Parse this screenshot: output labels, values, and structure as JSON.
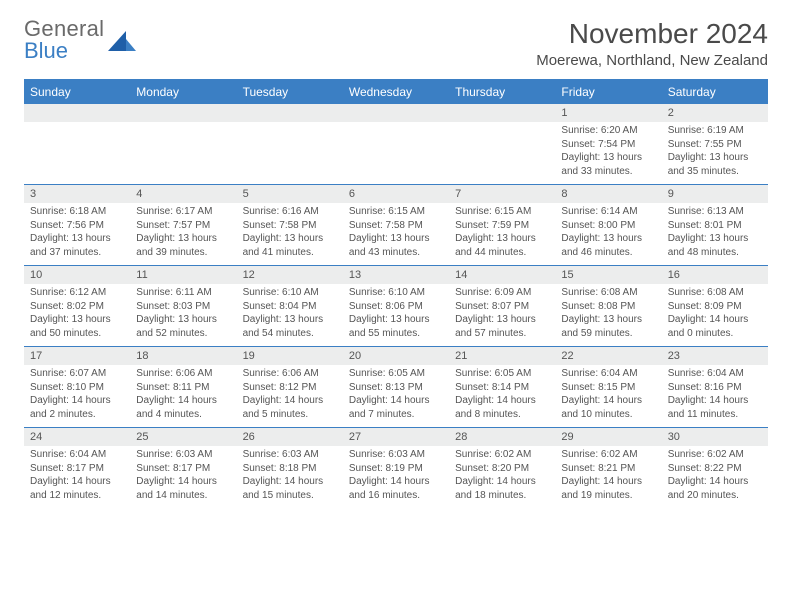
{
  "logo": {
    "top": "General",
    "bottom": "Blue"
  },
  "title": "November 2024",
  "location": "Moerewa, Northland, New Zealand",
  "colors": {
    "accent": "#3b7fc4",
    "header_bg": "#3b7fc4",
    "header_text": "#ffffff",
    "daynum_bg": "#eceded",
    "text": "#555555",
    "title_text": "#4a4a4a",
    "logo_gray": "#6a6a6a"
  },
  "day_headers": [
    "Sunday",
    "Monday",
    "Tuesday",
    "Wednesday",
    "Thursday",
    "Friday",
    "Saturday"
  ],
  "weeks": [
    {
      "nums": [
        "",
        "",
        "",
        "",
        "",
        "1",
        "2"
      ],
      "cells": [
        null,
        null,
        null,
        null,
        null,
        {
          "sr": "Sunrise: 6:20 AM",
          "ss": "Sunset: 7:54 PM",
          "d1": "Daylight: 13 hours",
          "d2": "and 33 minutes."
        },
        {
          "sr": "Sunrise: 6:19 AM",
          "ss": "Sunset: 7:55 PM",
          "d1": "Daylight: 13 hours",
          "d2": "and 35 minutes."
        }
      ]
    },
    {
      "nums": [
        "3",
        "4",
        "5",
        "6",
        "7",
        "8",
        "9"
      ],
      "cells": [
        {
          "sr": "Sunrise: 6:18 AM",
          "ss": "Sunset: 7:56 PM",
          "d1": "Daylight: 13 hours",
          "d2": "and 37 minutes."
        },
        {
          "sr": "Sunrise: 6:17 AM",
          "ss": "Sunset: 7:57 PM",
          "d1": "Daylight: 13 hours",
          "d2": "and 39 minutes."
        },
        {
          "sr": "Sunrise: 6:16 AM",
          "ss": "Sunset: 7:58 PM",
          "d1": "Daylight: 13 hours",
          "d2": "and 41 minutes."
        },
        {
          "sr": "Sunrise: 6:15 AM",
          "ss": "Sunset: 7:58 PM",
          "d1": "Daylight: 13 hours",
          "d2": "and 43 minutes."
        },
        {
          "sr": "Sunrise: 6:15 AM",
          "ss": "Sunset: 7:59 PM",
          "d1": "Daylight: 13 hours",
          "d2": "and 44 minutes."
        },
        {
          "sr": "Sunrise: 6:14 AM",
          "ss": "Sunset: 8:00 PM",
          "d1": "Daylight: 13 hours",
          "d2": "and 46 minutes."
        },
        {
          "sr": "Sunrise: 6:13 AM",
          "ss": "Sunset: 8:01 PM",
          "d1": "Daylight: 13 hours",
          "d2": "and 48 minutes."
        }
      ]
    },
    {
      "nums": [
        "10",
        "11",
        "12",
        "13",
        "14",
        "15",
        "16"
      ],
      "cells": [
        {
          "sr": "Sunrise: 6:12 AM",
          "ss": "Sunset: 8:02 PM",
          "d1": "Daylight: 13 hours",
          "d2": "and 50 minutes."
        },
        {
          "sr": "Sunrise: 6:11 AM",
          "ss": "Sunset: 8:03 PM",
          "d1": "Daylight: 13 hours",
          "d2": "and 52 minutes."
        },
        {
          "sr": "Sunrise: 6:10 AM",
          "ss": "Sunset: 8:04 PM",
          "d1": "Daylight: 13 hours",
          "d2": "and 54 minutes."
        },
        {
          "sr": "Sunrise: 6:10 AM",
          "ss": "Sunset: 8:06 PM",
          "d1": "Daylight: 13 hours",
          "d2": "and 55 minutes."
        },
        {
          "sr": "Sunrise: 6:09 AM",
          "ss": "Sunset: 8:07 PM",
          "d1": "Daylight: 13 hours",
          "d2": "and 57 minutes."
        },
        {
          "sr": "Sunrise: 6:08 AM",
          "ss": "Sunset: 8:08 PM",
          "d1": "Daylight: 13 hours",
          "d2": "and 59 minutes."
        },
        {
          "sr": "Sunrise: 6:08 AM",
          "ss": "Sunset: 8:09 PM",
          "d1": "Daylight: 14 hours",
          "d2": "and 0 minutes."
        }
      ]
    },
    {
      "nums": [
        "17",
        "18",
        "19",
        "20",
        "21",
        "22",
        "23"
      ],
      "cells": [
        {
          "sr": "Sunrise: 6:07 AM",
          "ss": "Sunset: 8:10 PM",
          "d1": "Daylight: 14 hours",
          "d2": "and 2 minutes."
        },
        {
          "sr": "Sunrise: 6:06 AM",
          "ss": "Sunset: 8:11 PM",
          "d1": "Daylight: 14 hours",
          "d2": "and 4 minutes."
        },
        {
          "sr": "Sunrise: 6:06 AM",
          "ss": "Sunset: 8:12 PM",
          "d1": "Daylight: 14 hours",
          "d2": "and 5 minutes."
        },
        {
          "sr": "Sunrise: 6:05 AM",
          "ss": "Sunset: 8:13 PM",
          "d1": "Daylight: 14 hours",
          "d2": "and 7 minutes."
        },
        {
          "sr": "Sunrise: 6:05 AM",
          "ss": "Sunset: 8:14 PM",
          "d1": "Daylight: 14 hours",
          "d2": "and 8 minutes."
        },
        {
          "sr": "Sunrise: 6:04 AM",
          "ss": "Sunset: 8:15 PM",
          "d1": "Daylight: 14 hours",
          "d2": "and 10 minutes."
        },
        {
          "sr": "Sunrise: 6:04 AM",
          "ss": "Sunset: 8:16 PM",
          "d1": "Daylight: 14 hours",
          "d2": "and 11 minutes."
        }
      ]
    },
    {
      "nums": [
        "24",
        "25",
        "26",
        "27",
        "28",
        "29",
        "30"
      ],
      "cells": [
        {
          "sr": "Sunrise: 6:04 AM",
          "ss": "Sunset: 8:17 PM",
          "d1": "Daylight: 14 hours",
          "d2": "and 12 minutes."
        },
        {
          "sr": "Sunrise: 6:03 AM",
          "ss": "Sunset: 8:17 PM",
          "d1": "Daylight: 14 hours",
          "d2": "and 14 minutes."
        },
        {
          "sr": "Sunrise: 6:03 AM",
          "ss": "Sunset: 8:18 PM",
          "d1": "Daylight: 14 hours",
          "d2": "and 15 minutes."
        },
        {
          "sr": "Sunrise: 6:03 AM",
          "ss": "Sunset: 8:19 PM",
          "d1": "Daylight: 14 hours",
          "d2": "and 16 minutes."
        },
        {
          "sr": "Sunrise: 6:02 AM",
          "ss": "Sunset: 8:20 PM",
          "d1": "Daylight: 14 hours",
          "d2": "and 18 minutes."
        },
        {
          "sr": "Sunrise: 6:02 AM",
          "ss": "Sunset: 8:21 PM",
          "d1": "Daylight: 14 hours",
          "d2": "and 19 minutes."
        },
        {
          "sr": "Sunrise: 6:02 AM",
          "ss": "Sunset: 8:22 PM",
          "d1": "Daylight: 14 hours",
          "d2": "and 20 minutes."
        }
      ]
    }
  ]
}
